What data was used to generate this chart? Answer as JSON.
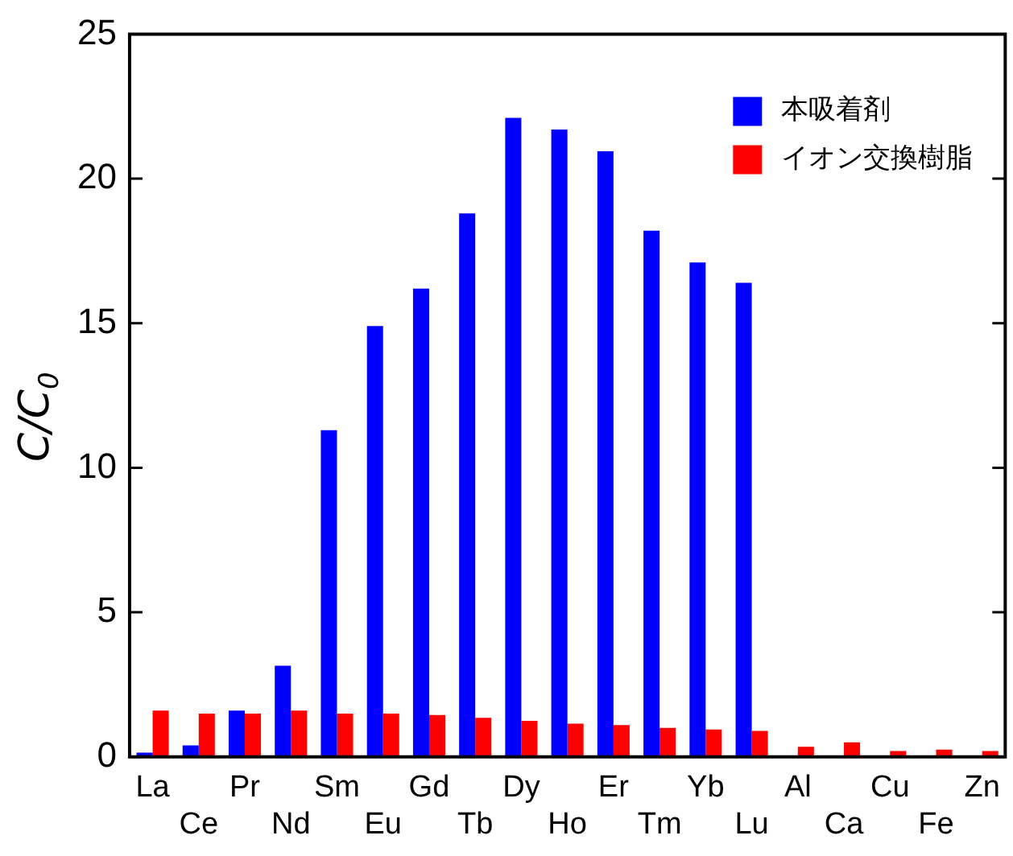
{
  "chart_data": {
    "type": "bar",
    "ylabel": "C/C$_{0}$",
    "categories": [
      "La",
      "Ce",
      "Pr",
      "Nd",
      "Sm",
      "Eu",
      "Gd",
      "Tb",
      "Dy",
      "Ho",
      "Er",
      "Tm",
      "Yb",
      "Lu",
      "Al",
      "Ca",
      "Cu",
      "Fe",
      "Zn"
    ],
    "series": [
      {
        "name": "本吸着剤",
        "color": "#0000ff",
        "values": [
          0.15,
          0.4,
          1.6,
          3.15,
          11.3,
          14.9,
          16.2,
          18.8,
          22.1,
          21.7,
          20.95,
          18.2,
          17.1,
          16.4,
          null,
          null,
          null,
          null,
          null
        ]
      },
      {
        "name": "イオン交換樹脂",
        "color": "#ff0000",
        "values": [
          1.6,
          1.5,
          1.5,
          1.6,
          1.5,
          1.5,
          1.45,
          1.35,
          1.25,
          1.15,
          1.1,
          1.0,
          0.95,
          0.9,
          0.35,
          0.5,
          0.2,
          0.25,
          0.2
        ]
      }
    ],
    "ylim": [
      0,
      25
    ],
    "yticks": [
      0,
      5,
      10,
      15,
      20,
      25
    ],
    "legend": "top right",
    "grid": false
  }
}
